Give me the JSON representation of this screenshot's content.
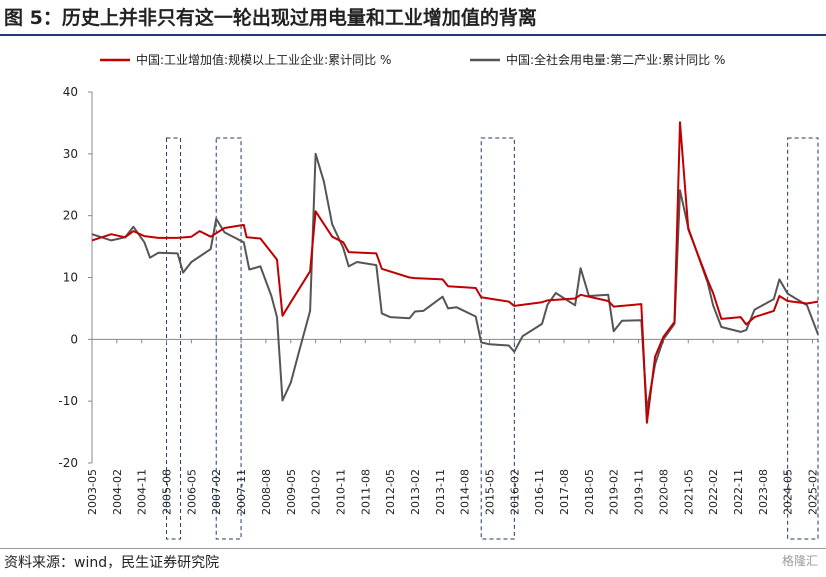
{
  "header": {
    "title": "图 5：历史上并非只有这一轮出现过用电量和工业增加值的背离"
  },
  "footer": {
    "source": "资料来源：wind，民生证券研究院",
    "watermark": "格隆汇"
  },
  "colors": {
    "series1": "#c00000",
    "series2": "#555555",
    "box": "#1f3a6e"
  },
  "chart_data": {
    "type": "line",
    "ylim": [
      -20,
      40
    ],
    "yticks": [
      -20,
      -10,
      0,
      10,
      20,
      30,
      40
    ],
    "xlabels": [
      "2003-05",
      "2004-02",
      "2004-11",
      "2005-08",
      "2006-05",
      "2007-02",
      "2007-11",
      "2008-08",
      "2009-05",
      "2010-02",
      "2010-11",
      "2011-08",
      "2012-05",
      "2013-02",
      "2013-11",
      "2014-08",
      "2015-05",
      "2016-02",
      "2016-11",
      "2017-08",
      "2018-05",
      "2019-02",
      "2019-11",
      "2020-08",
      "2021-05",
      "2022-02",
      "2022-11",
      "2023-08",
      "2024-05",
      "2025-02"
    ],
    "legend_position": "top",
    "highlight_ranges": [
      [
        "2005-08",
        "2005-12"
      ],
      [
        "2007-02",
        "2007-11"
      ],
      [
        "2015-02",
        "2016-02"
      ],
      [
        "2024-05",
        "2025-04"
      ]
    ],
    "series": [
      {
        "name": "中国:工业增加值:规模以上工业企业:累计同比 %",
        "points": [
          [
            "2003-05",
            16.0
          ],
          [
            "2003-12",
            17.0
          ],
          [
            "2004-05",
            16.5
          ],
          [
            "2004-08",
            17.5
          ],
          [
            "2004-12",
            16.7
          ],
          [
            "2005-05",
            16.4
          ],
          [
            "2005-12",
            16.4
          ],
          [
            "2006-05",
            16.6
          ],
          [
            "2006-08",
            17.5
          ],
          [
            "2006-12",
            16.6
          ],
          [
            "2007-05",
            18.0
          ],
          [
            "2007-12",
            18.5
          ],
          [
            "2008-01",
            16.5
          ],
          [
            "2008-06",
            16.3
          ],
          [
            "2008-12",
            12.9
          ],
          [
            "2009-02",
            3.8
          ],
          [
            "2009-05",
            6.0
          ],
          [
            "2009-12",
            11.0
          ],
          [
            "2010-02",
            20.7
          ],
          [
            "2010-08",
            16.6
          ],
          [
            "2010-12",
            15.7
          ],
          [
            "2011-02",
            14.1
          ],
          [
            "2011-12",
            13.9
          ],
          [
            "2012-02",
            11.4
          ],
          [
            "2012-12",
            10.0
          ],
          [
            "2013-02",
            9.9
          ],
          [
            "2013-12",
            9.7
          ],
          [
            "2014-02",
            8.6
          ],
          [
            "2014-12",
            8.3
          ],
          [
            "2015-02",
            6.8
          ],
          [
            "2015-12",
            6.1
          ],
          [
            "2016-02",
            5.4
          ],
          [
            "2016-12",
            6.0
          ],
          [
            "2017-02",
            6.3
          ],
          [
            "2017-12",
            6.6
          ],
          [
            "2018-02",
            7.2
          ],
          [
            "2018-12",
            6.2
          ],
          [
            "2019-02",
            5.3
          ],
          [
            "2019-12",
            5.7
          ],
          [
            "2020-02",
            -13.5
          ],
          [
            "2020-05",
            -2.8
          ],
          [
            "2020-08",
            0.4
          ],
          [
            "2020-12",
            2.8
          ],
          [
            "2021-02",
            35.1
          ],
          [
            "2021-05",
            17.8
          ],
          [
            "2021-12",
            9.6
          ],
          [
            "2022-02",
            7.5
          ],
          [
            "2022-05",
            3.3
          ],
          [
            "2022-12",
            3.6
          ],
          [
            "2023-02",
            2.4
          ],
          [
            "2023-05",
            3.6
          ],
          [
            "2023-12",
            4.6
          ],
          [
            "2024-02",
            7.0
          ],
          [
            "2024-05",
            6.2
          ],
          [
            "2024-12",
            5.8
          ],
          [
            "2025-04",
            6.1
          ]
        ]
      },
      {
        "name": "中国:全社会用电量:第二产业:累计同比 %",
        "points": [
          [
            "2003-05",
            17.0
          ],
          [
            "2003-12",
            16.0
          ],
          [
            "2004-05",
            16.5
          ],
          [
            "2004-08",
            18.2
          ],
          [
            "2004-12",
            15.7
          ],
          [
            "2005-02",
            13.2
          ],
          [
            "2005-05",
            14.0
          ],
          [
            "2005-12",
            13.9
          ],
          [
            "2006-02",
            10.8
          ],
          [
            "2006-05",
            12.5
          ],
          [
            "2006-12",
            14.6
          ],
          [
            "2007-02",
            19.5
          ],
          [
            "2007-05",
            17.3
          ],
          [
            "2007-12",
            15.7
          ],
          [
            "2008-02",
            11.3
          ],
          [
            "2008-06",
            11.8
          ],
          [
            "2008-10",
            7.0
          ],
          [
            "2008-12",
            3.6
          ],
          [
            "2009-02",
            -9.9
          ],
          [
            "2009-05",
            -7.0
          ],
          [
            "2009-08",
            -2.0
          ],
          [
            "2009-12",
            4.6
          ],
          [
            "2010-02",
            30.0
          ],
          [
            "2010-05",
            25.5
          ],
          [
            "2010-08",
            18.6
          ],
          [
            "2010-12",
            14.8
          ],
          [
            "2011-02",
            11.8
          ],
          [
            "2011-05",
            12.5
          ],
          [
            "2011-12",
            12.0
          ],
          [
            "2012-02",
            4.2
          ],
          [
            "2012-05",
            3.6
          ],
          [
            "2012-12",
            3.4
          ],
          [
            "2013-02",
            4.5
          ],
          [
            "2013-05",
            4.6
          ],
          [
            "2013-12",
            6.9
          ],
          [
            "2014-02",
            5.0
          ],
          [
            "2014-05",
            5.2
          ],
          [
            "2014-12",
            3.7
          ],
          [
            "2015-02",
            -0.5
          ],
          [
            "2015-05",
            -0.8
          ],
          [
            "2015-12",
            -1.0
          ],
          [
            "2016-02",
            -2.0
          ],
          [
            "2016-05",
            0.5
          ],
          [
            "2016-12",
            2.5
          ],
          [
            "2017-02",
            5.6
          ],
          [
            "2017-05",
            7.5
          ],
          [
            "2017-12",
            5.5
          ],
          [
            "2018-02",
            11.5
          ],
          [
            "2018-05",
            7.0
          ],
          [
            "2018-12",
            7.2
          ],
          [
            "2019-02",
            1.3
          ],
          [
            "2019-05",
            3.0
          ],
          [
            "2019-12",
            3.1
          ],
          [
            "2020-02",
            -11.5
          ],
          [
            "2020-05",
            -4.0
          ],
          [
            "2020-08",
            0.0
          ],
          [
            "2020-12",
            2.5
          ],
          [
            "2021-02",
            24.1
          ],
          [
            "2021-05",
            18.0
          ],
          [
            "2021-12",
            9.2
          ],
          [
            "2022-02",
            5.5
          ],
          [
            "2022-05",
            2.0
          ],
          [
            "2022-12",
            1.2
          ],
          [
            "2023-02",
            1.5
          ],
          [
            "2023-05",
            4.8
          ],
          [
            "2023-12",
            6.5
          ],
          [
            "2024-02",
            9.7
          ],
          [
            "2024-05",
            7.4
          ],
          [
            "2024-12",
            5.5
          ],
          [
            "2025-04",
            0.8
          ]
        ]
      }
    ]
  }
}
